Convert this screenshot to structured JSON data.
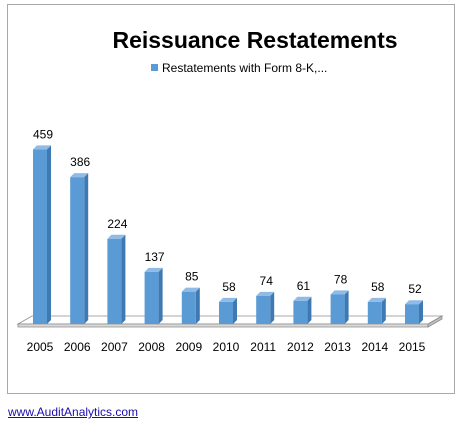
{
  "chart_data": {
    "type": "bar",
    "title": "Reissuance Restatements",
    "categories": [
      "2005",
      "2006",
      "2007",
      "2008",
      "2009",
      "2010",
      "2011",
      "2012",
      "2013",
      "2014",
      "2015"
    ],
    "series": [
      {
        "name": "Restatements with Form 8-K,...",
        "values": [
          459,
          386,
          224,
          137,
          85,
          58,
          74,
          61,
          78,
          58,
          52
        ]
      }
    ],
    "xlabel": "",
    "ylabel": "",
    "ylim": [
      0,
      500
    ],
    "grid": false,
    "legend": "top-center",
    "style": "3d-column",
    "colors": {
      "bar_front": "#5b9bd5",
      "bar_side": "#3f79b1",
      "bar_top": "#8fbbe6",
      "floor_top": "#ffffff",
      "floor_front": "#d9d9d9",
      "floor_stroke": "#8c8c8c"
    }
  },
  "footer": {
    "source_link": "www.AuditAnalytics.com"
  }
}
